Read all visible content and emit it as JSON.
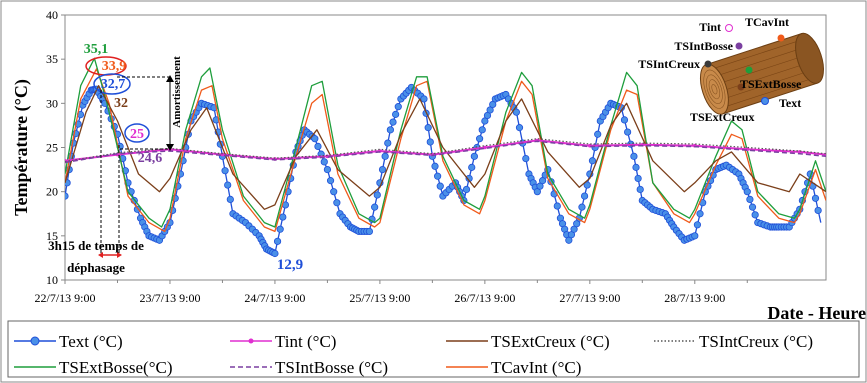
{
  "chart_data": {
    "type": "line",
    "xlabel": "Date - Heure",
    "ylabel": "Température (°C)",
    "ylim": [
      10,
      40
    ],
    "yticks": [
      10,
      15,
      20,
      25,
      30,
      35,
      40
    ],
    "x_range_days": [
      0,
      7.25
    ],
    "xticks": [
      {
        "value": 0,
        "label": "22/7/13 9:00"
      },
      {
        "value": 1,
        "label": "23/7/13 9:00"
      },
      {
        "value": 2,
        "label": "24/7/13 9:00"
      },
      {
        "value": 3,
        "label": "25/7/13 9:00"
      },
      {
        "value": 4,
        "label": "26/7/13 9:00"
      },
      {
        "value": 5,
        "label": "27/7/13 9:00"
      },
      {
        "value": 6,
        "label": "28/7/13 9:00"
      }
    ],
    "grid": false,
    "legend_position": "bottom",
    "series": [
      {
        "name": "Text (°C)",
        "color": "#1f4fd8",
        "style": "line-circle",
        "x": [
          0.0,
          0.08,
          0.17,
          0.25,
          0.3,
          0.38,
          0.5,
          0.6,
          0.72,
          0.8,
          0.9,
          1.0,
          1.1,
          1.2,
          1.3,
          1.42,
          1.5,
          1.6,
          1.72,
          1.85,
          1.92,
          2.0,
          2.1,
          2.2,
          2.28,
          2.38,
          2.5,
          2.62,
          2.72,
          2.8,
          2.9,
          3.0,
          3.1,
          3.2,
          3.3,
          3.42,
          3.5,
          3.6,
          3.72,
          3.8,
          3.9,
          4.0,
          4.1,
          4.2,
          4.3,
          4.42,
          4.5,
          4.6,
          4.72,
          4.8,
          4.9,
          5.0,
          5.1,
          5.2,
          5.3,
          5.42,
          5.5,
          5.6,
          5.72,
          5.8,
          5.9,
          6.0,
          6.1,
          6.2,
          6.3,
          6.42,
          6.5,
          6.6,
          6.72,
          6.8,
          6.9,
          7.0,
          7.1,
          7.2
        ],
        "y": [
          19.5,
          25.5,
          29.8,
          31.5,
          31.6,
          30.0,
          26.5,
          21.0,
          17.0,
          15.0,
          14.5,
          16.5,
          22.0,
          28.0,
          30.0,
          29.5,
          24.0,
          17.5,
          16.5,
          15.0,
          13.5,
          13.0,
          18.5,
          24.5,
          27.0,
          26.0,
          22.5,
          17.5,
          16.0,
          15.5,
          15.5,
          21.0,
          27.0,
          30.5,
          31.8,
          30.5,
          24.0,
          19.5,
          21.0,
          19.0,
          24.0,
          28.0,
          30.5,
          31.0,
          29.0,
          22.0,
          20.0,
          22.5,
          17.0,
          14.5,
          17.0,
          22.0,
          28.0,
          30.0,
          29.5,
          24.0,
          19.0,
          18.0,
          17.5,
          16.0,
          14.5,
          15.0,
          20.0,
          22.5,
          23.0,
          22.0,
          20.0,
          16.5,
          16.0,
          16.0,
          16.0,
          18.0,
          22.0,
          16.5
        ]
      },
      {
        "name": "Tint (°C)",
        "color": "#e02fd0",
        "style": "line-dot",
        "x": [
          0.0,
          0.5,
          1.0,
          1.5,
          2.0,
          2.5,
          3.0,
          3.5,
          4.0,
          4.5,
          5.0,
          5.5,
          6.0,
          6.5,
          7.0,
          7.25
        ],
        "y": [
          23.5,
          24.2,
          24.8,
          24.2,
          23.7,
          24.0,
          24.6,
          24.2,
          25.0,
          25.8,
          25.2,
          25.3,
          25.2,
          24.8,
          24.5,
          24.2
        ]
      },
      {
        "name": "TSExtCreux (°C)",
        "color": "#7b3f1a",
        "style": "line",
        "x": [
          0.0,
          0.2,
          0.32,
          0.5,
          0.7,
          0.9,
          1.0,
          1.2,
          1.35,
          1.6,
          1.9,
          2.0,
          2.2,
          2.4,
          2.6,
          2.9,
          3.0,
          3.2,
          3.38,
          3.6,
          3.9,
          4.0,
          4.2,
          4.35,
          4.6,
          4.9,
          5.0,
          5.2,
          5.35,
          5.6,
          5.9,
          6.0,
          6.2,
          6.35,
          6.6,
          6.9,
          7.0,
          7.25
        ],
        "y": [
          21.0,
          29.0,
          32.0,
          28.0,
          22.0,
          20.0,
          21.5,
          27.0,
          29.5,
          22.0,
          18.0,
          18.5,
          24.0,
          27.0,
          22.5,
          19.5,
          20.5,
          26.5,
          30.5,
          25.0,
          20.5,
          22.0,
          28.0,
          30.5,
          24.5,
          20.5,
          21.5,
          27.5,
          30.0,
          23.5,
          20.0,
          21.0,
          23.5,
          24.5,
          21.0,
          20.0,
          22.0,
          20.0
        ]
      },
      {
        "name": "TSIntCreux (°C)",
        "color": "#555555",
        "style": "dotted",
        "x": [
          0.0,
          0.5,
          1.0,
          1.5,
          2.0,
          2.5,
          3.0,
          3.5,
          4.0,
          4.5,
          5.0,
          5.5,
          6.0,
          6.5,
          7.0,
          7.25
        ],
        "y": [
          23.4,
          24.4,
          24.9,
          24.3,
          23.8,
          24.1,
          24.8,
          24.3,
          25.2,
          26.0,
          25.4,
          25.5,
          25.4,
          25.0,
          24.6,
          24.3
        ]
      },
      {
        "name": "TSExtBosse(°C)",
        "color": "#1e9e3c",
        "style": "line",
        "x": [
          0.0,
          0.15,
          0.28,
          0.4,
          0.6,
          0.8,
          0.92,
          1.0,
          1.15,
          1.3,
          1.38,
          1.5,
          1.7,
          1.9,
          2.0,
          2.2,
          2.35,
          2.45,
          2.6,
          2.8,
          2.95,
          3.0,
          3.2,
          3.35,
          3.45,
          3.6,
          3.8,
          3.95,
          4.0,
          4.2,
          4.35,
          4.45,
          4.6,
          4.8,
          4.95,
          5.0,
          5.2,
          5.35,
          5.45,
          5.6,
          5.8,
          5.95,
          6.0,
          6.2,
          6.35,
          6.45,
          6.6,
          6.8,
          6.95,
          7.0,
          7.15,
          7.25
        ],
        "y": [
          22.0,
          32.0,
          35.1,
          30.0,
          20.0,
          17.0,
          16.0,
          18.0,
          27.0,
          33.0,
          34.0,
          27.0,
          19.5,
          16.5,
          16.0,
          25.0,
          32.0,
          32.5,
          23.0,
          17.5,
          16.5,
          17.0,
          27.0,
          33.0,
          33.0,
          24.0,
          19.0,
          18.0,
          19.5,
          29.0,
          33.5,
          32.0,
          22.0,
          18.0,
          17.0,
          18.5,
          27.5,
          33.5,
          32.0,
          21.0,
          18.0,
          17.0,
          18.0,
          24.0,
          28.0,
          27.0,
          20.0,
          17.5,
          17.0,
          18.0,
          23.5,
          20.0
        ]
      },
      {
        "name": "TSIntBosse (°C)",
        "color": "#7a3fa0",
        "style": "dashed",
        "x": [
          0.0,
          0.5,
          1.0,
          1.5,
          2.0,
          2.5,
          3.0,
          3.5,
          4.0,
          4.5,
          5.0,
          5.5,
          6.0,
          6.5,
          7.0,
          7.25
        ],
        "y": [
          23.3,
          24.3,
          24.6,
          24.1,
          23.6,
          23.9,
          24.5,
          24.1,
          24.9,
          25.7,
          25.1,
          25.2,
          25.1,
          24.7,
          24.3,
          24.0
        ]
      },
      {
        "name": "TCavInt (°C)",
        "color": "#f05a1a",
        "style": "line",
        "x": [
          0.0,
          0.15,
          0.3,
          0.42,
          0.6,
          0.8,
          0.95,
          1.0,
          1.15,
          1.3,
          1.4,
          1.5,
          1.7,
          1.9,
          2.0,
          2.2,
          2.35,
          2.45,
          2.6,
          2.8,
          2.95,
          3.0,
          3.2,
          3.35,
          3.45,
          3.6,
          3.8,
          3.95,
          4.0,
          4.2,
          4.35,
          4.45,
          4.6,
          4.8,
          4.95,
          5.0,
          5.2,
          5.35,
          5.45,
          5.6,
          5.8,
          5.95,
          6.0,
          6.2,
          6.35,
          6.45,
          6.6,
          6.8,
          6.95,
          7.0,
          7.15,
          7.25
        ],
        "y": [
          21.0,
          30.5,
          33.9,
          30.0,
          19.5,
          16.5,
          15.5,
          17.0,
          26.0,
          31.5,
          32.0,
          26.0,
          19.0,
          16.0,
          15.5,
          24.0,
          30.0,
          31.0,
          22.0,
          17.0,
          16.0,
          16.5,
          26.0,
          32.0,
          32.5,
          23.5,
          18.5,
          17.5,
          19.0,
          28.0,
          32.5,
          31.0,
          21.5,
          17.5,
          16.5,
          18.0,
          27.0,
          31.5,
          31.0,
          21.0,
          17.5,
          16.5,
          17.5,
          23.0,
          26.5,
          26.0,
          19.5,
          17.0,
          16.5,
          17.5,
          22.5,
          19.0
        ]
      }
    ],
    "annotations": [
      {
        "text": "35,1",
        "color": "#1e9e3c",
        "x": 0.28,
        "y": 35.1
      },
      {
        "text": "33,9",
        "color": "#f05a1a",
        "x": 0.3,
        "y": 33.9
      },
      {
        "text": "32,7",
        "color": "#1f4fd8",
        "x": 0.29,
        "y": 32.7
      },
      {
        "text": "32",
        "color": "#7b3f1a",
        "x": 0.32,
        "y": 32.0
      },
      {
        "text": "25",
        "color": "#e02fd0",
        "x": 0.5,
        "y": 25.0
      },
      {
        "text": "24,6",
        "color": "#7a3fa0",
        "x": 0.52,
        "y": 24.6
      },
      {
        "text": "12,9",
        "color": "#1f4fd8",
        "x": 2.0,
        "y": 12.9
      }
    ],
    "annotation_labels": {
      "amortissement": "Amortissement",
      "dephasage_line1": "3h15 de temps de",
      "dephasage_line2": "déphasage"
    },
    "inset_labels": [
      "Tint",
      "TCavInt",
      "TSIntBosse",
      "TSIntCreux",
      "TSExtBosse",
      "Text",
      "TSExtCreux"
    ]
  }
}
